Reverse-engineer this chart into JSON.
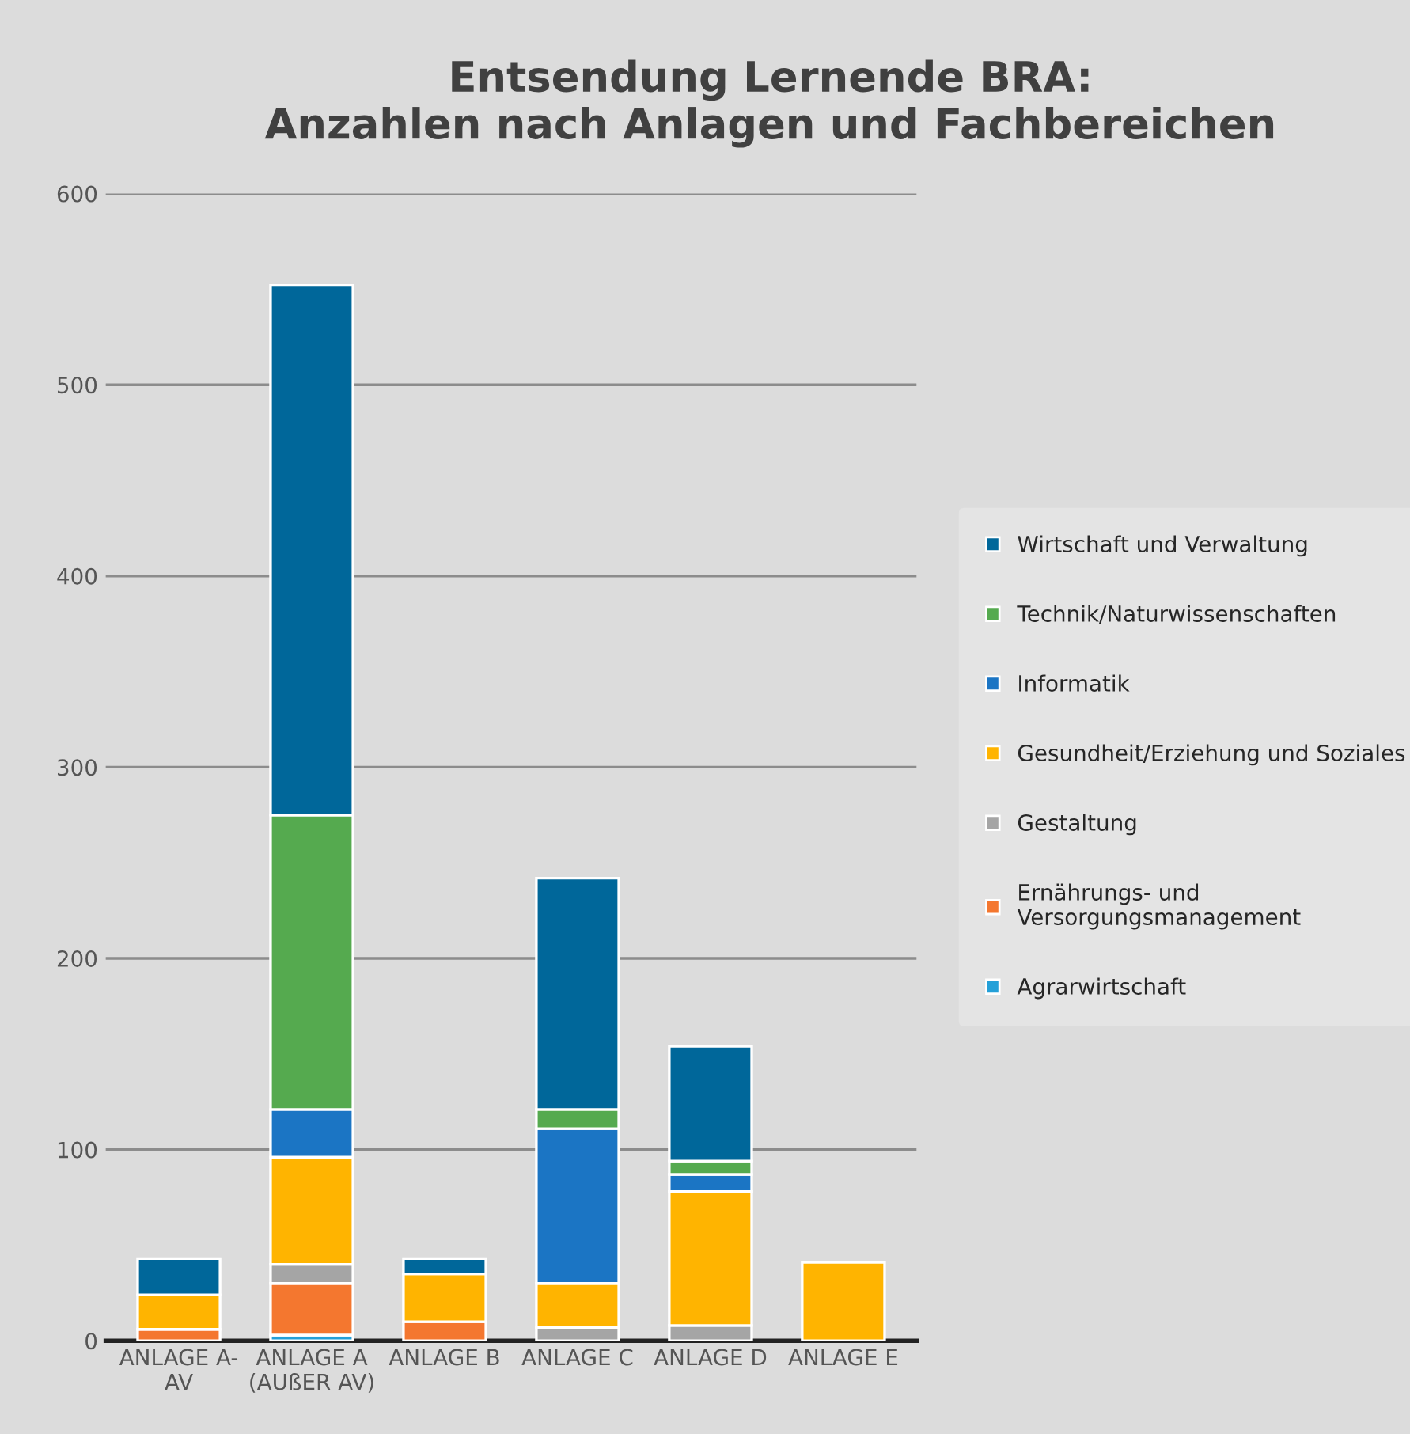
{
  "chart_data": {
    "type": "bar",
    "stacked": true,
    "title": "Entsendung Lernende BRA:\nAnzahlen nach Anlagen und Fachbereichen",
    "categories": [
      "ANLAGE A-\nAV",
      "ANLAGE A\n(AUßER AV)",
      "ANLAGE B",
      "ANLAGE C",
      "ANLAGE D",
      "ANLAGE E"
    ],
    "series": [
      {
        "name": "Agrarwirtschaft",
        "color": "#24a0d8",
        "values": [
          0,
          3,
          0,
          0,
          0,
          0
        ]
      },
      {
        "name": "Ernährungs- und\nVersorgungsmanagement",
        "color": "#f4772f",
        "values": [
          6,
          27,
          10,
          0,
          0,
          0
        ]
      },
      {
        "name": "Gestaltung",
        "color": "#a5a5a5",
        "values": [
          0,
          10,
          0,
          7,
          8,
          0
        ]
      },
      {
        "name": "Gesundheit/Erziehung und Soziales",
        "color": "#ffb400",
        "values": [
          18,
          56,
          25,
          23,
          70,
          41
        ]
      },
      {
        "name": "Informatik",
        "color": "#1b75c4",
        "values": [
          0,
          25,
          0,
          81,
          9,
          0
        ]
      },
      {
        "name": "Technik/Naturwissenschaften",
        "color": "#55aa4f",
        "values": [
          0,
          154,
          0,
          10,
          7,
          0
        ]
      },
      {
        "name": "Wirtschaft und Verwaltung",
        "color": "#00679a",
        "values": [
          19,
          277,
          8,
          121,
          60,
          0
        ]
      }
    ],
    "ylim": [
      0,
      600
    ],
    "yticks": [
      0,
      100,
      200,
      300,
      400,
      500,
      600
    ],
    "grid": "y",
    "legend": "right"
  }
}
